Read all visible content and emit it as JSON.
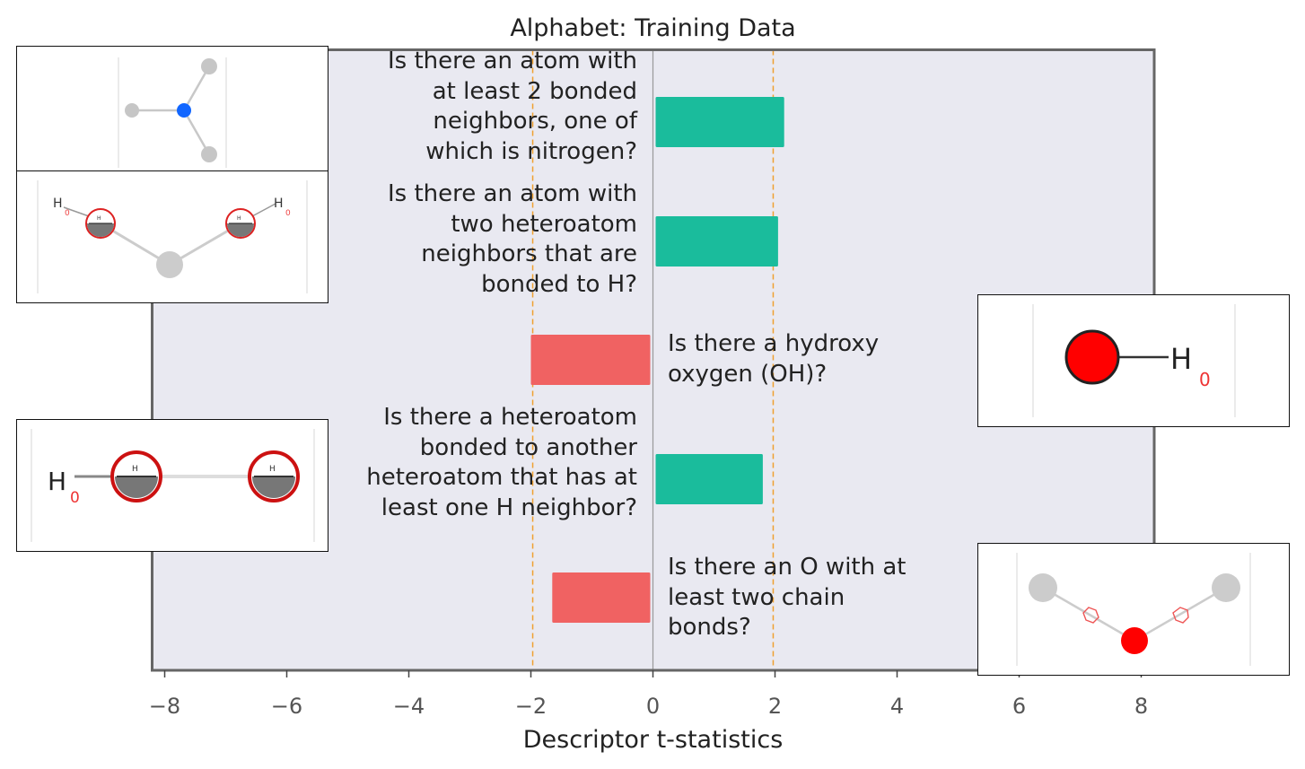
{
  "chart_data": {
    "type": "bar",
    "orientation": "horizontal",
    "title": "Alphabet: Training Data",
    "xlabel": "Descriptor t-statistics",
    "ylabel": "",
    "xlim": [
      -8.2,
      8.2
    ],
    "xticks": [
      -8,
      -6,
      -4,
      -2,
      0,
      2,
      4,
      6,
      8
    ],
    "xtick_labels": [
      "−8",
      "−6",
      "−4",
      "−2",
      "0",
      "2",
      "4",
      "6",
      "8"
    ],
    "significance_lines": [
      -1.97,
      1.97
    ],
    "categories": [
      "Is there an atom with at least 2 bonded neighbors, one of which is nitrogen?",
      "Is there an atom with two heteroatom neighbors that are bonded to H?",
      "Is there a hydroxy oxygen (OH)?",
      "Is there a heteroatom bonded to another heteroatom that has at least one H neighbor?",
      "Is there an O with at least two chain bonds?"
    ],
    "values": [
      2.15,
      2.05,
      -2.0,
      1.8,
      -1.65
    ],
    "colors": {
      "positive": "#1abc9c",
      "negative": "#f06262",
      "background": "#e9e9f1",
      "frame": "#666666",
      "significance": "#f0a030",
      "zero_line": "#999999"
    },
    "grid": false
  },
  "insets": [
    {
      "name": "nitrogen-neighbor-molecule",
      "labels": []
    },
    {
      "name": "hetero-neighbors-h-molecule",
      "labels": [
        "H",
        "0",
        "H",
        "0",
        "H",
        "H"
      ]
    },
    {
      "name": "hydroxy-molecule",
      "labels": [
        "H",
        "0"
      ]
    },
    {
      "name": "heteroatom-heteroatom-molecule",
      "labels": [
        "H",
        "0",
        "H",
        "H"
      ]
    },
    {
      "name": "oxygen-chain-molecule",
      "labels": []
    }
  ]
}
